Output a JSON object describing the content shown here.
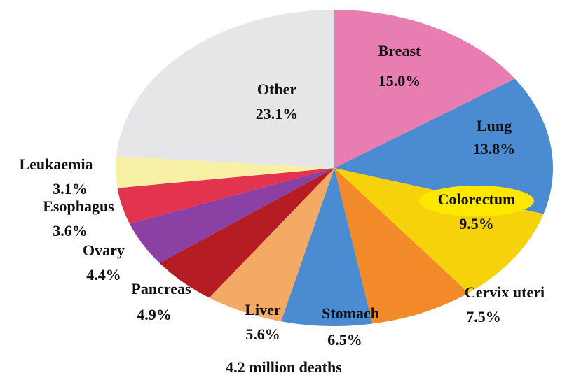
{
  "chart_data": {
    "type": "pie",
    "caption": "4.2 million deaths",
    "categories": [
      "Breast",
      "Lung",
      "Colorectum",
      "Cervix uteri",
      "Stomach",
      "Liver",
      "Pancreas",
      "Ovary",
      "Esophagus",
      "Leukaemia",
      "Other"
    ],
    "values": [
      15.0,
      13.8,
      9.5,
      7.5,
      6.5,
      5.6,
      4.9,
      4.4,
      3.6,
      3.1,
      23.1
    ],
    "value_labels": [
      "15.0%",
      "13.8%",
      "9.5%",
      "7.5%",
      "6.5%",
      "5.6%",
      "4.9%",
      "4.4%",
      "3.6%",
      "3.1%",
      "23.1%"
    ],
    "colors": [
      "#e87db2",
      "#4a8bd2",
      "#f6d20a",
      "#f28a2a",
      "#4a8bd2",
      "#f4aa64",
      "#b51c24",
      "#8b41a3",
      "#e2344e",
      "#f8f0a4",
      "#e6e6e8"
    ]
  }
}
